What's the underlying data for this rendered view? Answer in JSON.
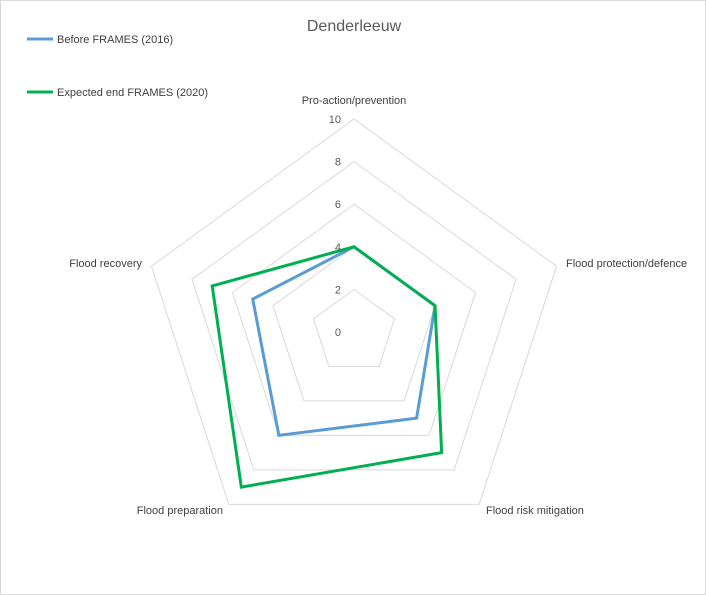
{
  "chart_data": {
    "type": "radar",
    "title": "Denderleeuw",
    "axes": [
      "Pro-action/prevention",
      "Flood protection/defence",
      "Flood risk mitigation",
      "Flood preparation",
      "Flood recovery"
    ],
    "ticks": [
      "0",
      "2",
      "4",
      "6",
      "8",
      "10"
    ],
    "range": [
      0,
      10
    ],
    "series": [
      {
        "name": "Before FRAMES (2016)",
        "color": "#5b9bd5",
        "values": [
          4,
          4,
          5,
          6,
          5
        ]
      },
      {
        "name": "Expected end FRAMES (2020)",
        "color": "#00b050",
        "values": [
          4,
          4,
          7,
          9,
          7
        ]
      }
    ],
    "grid": true,
    "legend": "top-left"
  }
}
